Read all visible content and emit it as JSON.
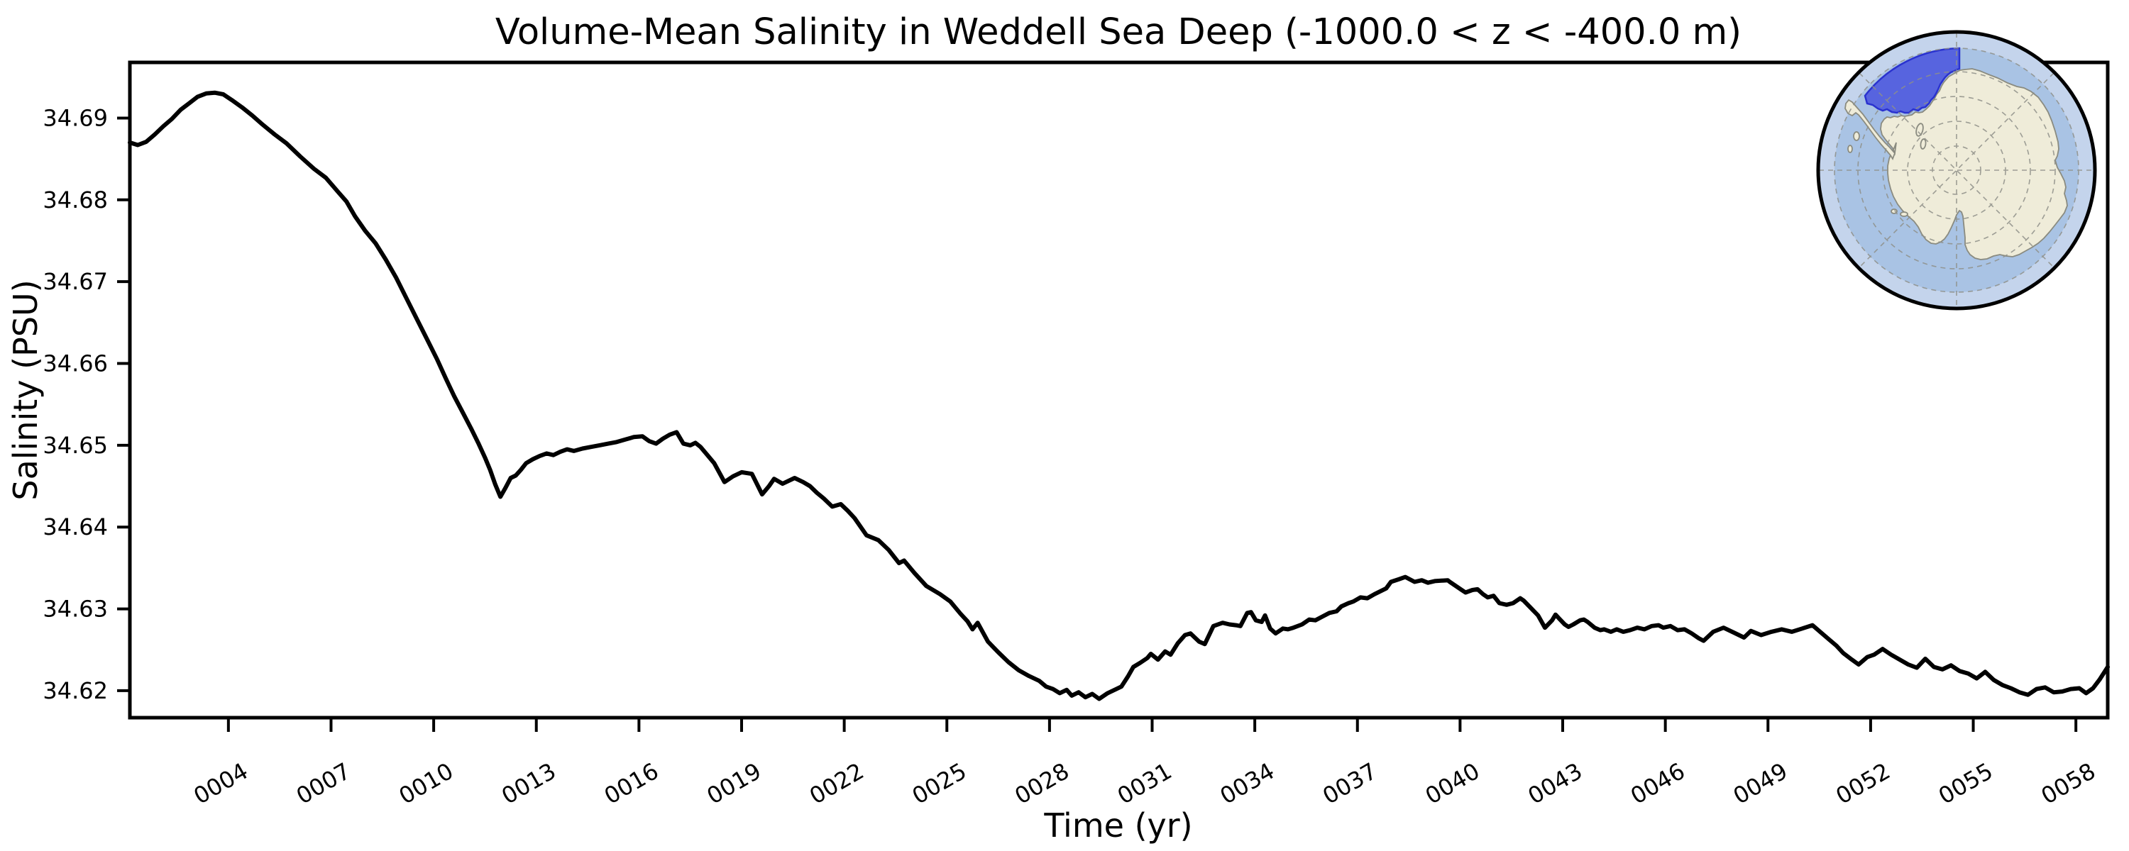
{
  "figure": {
    "title": "Volume-Mean Salinity in Weddell Sea Deep (-1000.0 < z < -400.0 m)",
    "xlabel": "Time (yr)",
    "ylabel": "Salinity (PSU)"
  },
  "chart_data": {
    "type": "line",
    "title": "Volume-Mean Salinity in Weddell Sea Deep (-1000.0 < z < -400.0 m)",
    "xlabel": "Time (yr)",
    "ylabel": "Salinity (PSU)",
    "x_tick_labels": [
      "0004",
      "0007",
      "0010",
      "0013",
      "0016",
      "0019",
      "0022",
      "0025",
      "0028",
      "0031",
      "0034",
      "0037",
      "0040",
      "0043",
      "0046",
      "0049",
      "0052",
      "0055",
      "0058"
    ],
    "x_tick_years": [
      4,
      7,
      10,
      13,
      16,
      19,
      22,
      25,
      28,
      31,
      34,
      37,
      40,
      43,
      46,
      49,
      52,
      55,
      58
    ],
    "y_ticks": [
      34.62,
      34.63,
      34.64,
      34.65,
      34.66,
      34.67,
      34.68,
      34.69
    ],
    "xlim": [
      1.12,
      58.93
    ],
    "ylim": [
      34.6167,
      34.6968
    ],
    "grid": false,
    "legend": null,
    "line_color": "#000000",
    "series": [
      {
        "name": "volume-mean salinity",
        "points": [
          [
            1.12,
            34.687
          ],
          [
            1.35,
            34.6867
          ],
          [
            1.6,
            34.6871
          ],
          [
            1.85,
            34.688
          ],
          [
            2.1,
            34.689
          ],
          [
            2.35,
            34.6899
          ],
          [
            2.6,
            34.691
          ],
          [
            2.85,
            34.6918
          ],
          [
            3.1,
            34.6926
          ],
          [
            3.35,
            34.693
          ],
          [
            3.6,
            34.6931
          ],
          [
            3.85,
            34.6929
          ],
          [
            4.1,
            34.6922
          ],
          [
            4.4,
            34.6913
          ],
          [
            4.7,
            34.6903
          ],
          [
            5.0,
            34.6892
          ],
          [
            5.35,
            34.688
          ],
          [
            5.7,
            34.6869
          ],
          [
            6.1,
            34.6853
          ],
          [
            6.5,
            34.6838
          ],
          [
            6.85,
            34.6827
          ],
          [
            7.2,
            34.681
          ],
          [
            7.45,
            34.6798
          ],
          [
            7.7,
            34.678
          ],
          [
            8.0,
            34.6762
          ],
          [
            8.3,
            34.6747
          ],
          [
            8.6,
            34.6727
          ],
          [
            8.9,
            34.6705
          ],
          [
            9.2,
            34.668
          ],
          [
            9.5,
            34.6655
          ],
          [
            9.8,
            34.663
          ],
          [
            10.1,
            34.6605
          ],
          [
            10.35,
            34.6582
          ],
          [
            10.6,
            34.656
          ],
          [
            10.85,
            34.654
          ],
          [
            11.1,
            34.652
          ],
          [
            11.3,
            34.6503
          ],
          [
            11.5,
            34.6485
          ],
          [
            11.65,
            34.647
          ],
          [
            11.8,
            34.6452
          ],
          [
            11.95,
            34.6437
          ],
          [
            12.1,
            34.6448
          ],
          [
            12.25,
            34.646
          ],
          [
            12.4,
            34.6463
          ],
          [
            12.55,
            34.647
          ],
          [
            12.7,
            34.6478
          ],
          [
            12.9,
            34.6483
          ],
          [
            13.1,
            34.6487
          ],
          [
            13.3,
            34.649
          ],
          [
            13.5,
            34.6488
          ],
          [
            13.7,
            34.6492
          ],
          [
            13.9,
            34.6495
          ],
          [
            14.1,
            34.6493
          ],
          [
            14.35,
            34.6496
          ],
          [
            14.6,
            34.6498
          ],
          [
            14.85,
            34.65
          ],
          [
            15.1,
            34.6502
          ],
          [
            15.35,
            34.6504
          ],
          [
            15.6,
            34.6507
          ],
          [
            15.85,
            34.651
          ],
          [
            16.1,
            34.6511
          ],
          [
            16.3,
            34.6505
          ],
          [
            16.5,
            34.6502
          ],
          [
            16.7,
            34.6508
          ],
          [
            16.9,
            34.6513
          ],
          [
            17.1,
            34.6516
          ],
          [
            17.3,
            34.6502
          ],
          [
            17.5,
            34.65
          ],
          [
            17.65,
            34.6503
          ],
          [
            17.8,
            34.6498
          ],
          [
            18.0,
            34.6488
          ],
          [
            18.2,
            34.6478
          ],
          [
            18.5,
            34.6455
          ],
          [
            18.75,
            34.6462
          ],
          [
            19.0,
            34.6467
          ],
          [
            19.3,
            34.6465
          ],
          [
            19.6,
            34.644
          ],
          [
            19.8,
            34.645
          ],
          [
            19.95,
            34.6459
          ],
          [
            20.2,
            34.6453
          ],
          [
            20.55,
            34.646
          ],
          [
            20.8,
            34.6455
          ],
          [
            21.0,
            34.645
          ],
          [
            21.2,
            34.6442
          ],
          [
            21.4,
            34.6435
          ],
          [
            21.65,
            34.6425
          ],
          [
            21.9,
            34.6428
          ],
          [
            22.1,
            34.642
          ],
          [
            22.3,
            34.6411
          ],
          [
            22.65,
            34.639
          ],
          [
            23.0,
            34.6384
          ],
          [
            23.3,
            34.6372
          ],
          [
            23.6,
            34.6356
          ],
          [
            23.75,
            34.6359
          ],
          [
            24.05,
            34.6344
          ],
          [
            24.4,
            34.6328
          ],
          [
            24.8,
            34.6318
          ],
          [
            25.1,
            34.6309
          ],
          [
            25.4,
            34.6294
          ],
          [
            25.6,
            34.6285
          ],
          [
            25.75,
            34.6275
          ],
          [
            25.9,
            34.6283
          ],
          [
            26.2,
            34.626
          ],
          [
            26.5,
            34.6247
          ],
          [
            26.8,
            34.6235
          ],
          [
            27.1,
            34.6225
          ],
          [
            27.4,
            34.6218
          ],
          [
            27.7,
            34.6212
          ],
          [
            27.9,
            34.6205
          ],
          [
            28.1,
            34.6202
          ],
          [
            28.3,
            34.6197
          ],
          [
            28.5,
            34.6201
          ],
          [
            28.65,
            34.6194
          ],
          [
            28.85,
            34.6198
          ],
          [
            29.05,
            34.6192
          ],
          [
            29.25,
            34.6196
          ],
          [
            29.45,
            34.619
          ],
          [
            29.7,
            34.6197
          ],
          [
            29.9,
            34.6201
          ],
          [
            30.1,
            34.6205
          ],
          [
            30.3,
            34.6218
          ],
          [
            30.45,
            34.6229
          ],
          [
            30.65,
            34.6234
          ],
          [
            30.86,
            34.624
          ],
          [
            30.96,
            34.6245
          ],
          [
            31.17,
            34.6238
          ],
          [
            31.38,
            34.6248
          ],
          [
            31.54,
            34.6244
          ],
          [
            31.75,
            34.6258
          ],
          [
            31.96,
            34.6268
          ],
          [
            32.12,
            34.627
          ],
          [
            32.37,
            34.626
          ],
          [
            32.54,
            34.6257
          ],
          [
            32.79,
            34.6279
          ],
          [
            33.06,
            34.6283
          ],
          [
            33.26,
            34.6281
          ],
          [
            33.45,
            34.628
          ],
          [
            33.58,
            34.6279
          ],
          [
            33.78,
            34.6295
          ],
          [
            33.89,
            34.6296
          ],
          [
            34.03,
            34.6286
          ],
          [
            34.2,
            34.6284
          ],
          [
            34.3,
            34.6292
          ],
          [
            34.45,
            34.6276
          ],
          [
            34.61,
            34.627
          ],
          [
            34.82,
            34.6276
          ],
          [
            34.97,
            34.6275
          ],
          [
            35.13,
            34.6277
          ],
          [
            35.38,
            34.6281
          ],
          [
            35.59,
            34.6287
          ],
          [
            35.77,
            34.6286
          ],
          [
            35.95,
            34.629
          ],
          [
            36.18,
            34.6295
          ],
          [
            36.39,
            34.6297
          ],
          [
            36.53,
            34.6303
          ],
          [
            36.74,
            34.6307
          ],
          [
            36.88,
            34.6309
          ],
          [
            37.09,
            34.6314
          ],
          [
            37.29,
            34.6313
          ],
          [
            37.5,
            34.6318
          ],
          [
            37.84,
            34.6325
          ],
          [
            37.98,
            34.6333
          ],
          [
            38.2,
            34.6336
          ],
          [
            38.4,
            34.6339
          ],
          [
            38.67,
            34.6333
          ],
          [
            38.88,
            34.6335
          ],
          [
            39.06,
            34.6332
          ],
          [
            39.26,
            34.6334
          ],
          [
            39.64,
            34.6335
          ],
          [
            39.7,
            34.6333
          ],
          [
            40.05,
            34.6323
          ],
          [
            40.16,
            34.632
          ],
          [
            40.36,
            34.6323
          ],
          [
            40.51,
            34.6324
          ],
          [
            40.67,
            34.6318
          ],
          [
            40.81,
            34.6314
          ],
          [
            40.98,
            34.6316
          ],
          [
            41.15,
            34.6307
          ],
          [
            41.36,
            34.6305
          ],
          [
            41.55,
            34.6307
          ],
          [
            41.76,
            34.6313
          ],
          [
            41.86,
            34.631
          ],
          [
            42.07,
            34.6301
          ],
          [
            42.28,
            34.6292
          ],
          [
            42.48,
            34.6277
          ],
          [
            42.69,
            34.6286
          ],
          [
            42.79,
            34.6293
          ],
          [
            42.9,
            34.6288
          ],
          [
            43.06,
            34.6281
          ],
          [
            43.17,
            34.6278
          ],
          [
            43.31,
            34.6281
          ],
          [
            43.51,
            34.6286
          ],
          [
            43.62,
            34.6287
          ],
          [
            43.73,
            34.6284
          ],
          [
            43.93,
            34.6277
          ],
          [
            44.1,
            34.6274
          ],
          [
            44.21,
            34.6275
          ],
          [
            44.41,
            34.6272
          ],
          [
            44.58,
            34.6275
          ],
          [
            44.77,
            34.6272
          ],
          [
            44.97,
            34.6274
          ],
          [
            45.18,
            34.6277
          ],
          [
            45.39,
            34.6275
          ],
          [
            45.6,
            34.6279
          ],
          [
            45.8,
            34.628
          ],
          [
            45.94,
            34.6277
          ],
          [
            46.15,
            34.6279
          ],
          [
            46.36,
            34.6274
          ],
          [
            46.56,
            34.6275
          ],
          [
            46.77,
            34.627
          ],
          [
            46.98,
            34.6264
          ],
          [
            47.12,
            34.6261
          ],
          [
            47.4,
            34.6272
          ],
          [
            47.7,
            34.6277
          ],
          [
            48.0,
            34.6271
          ],
          [
            48.3,
            34.6265
          ],
          [
            48.5,
            34.6273
          ],
          [
            48.8,
            34.6268
          ],
          [
            49.1,
            34.6272
          ],
          [
            49.4,
            34.6275
          ],
          [
            49.7,
            34.6272
          ],
          [
            50.0,
            34.6276
          ],
          [
            50.3,
            34.628
          ],
          [
            50.55,
            34.6271
          ],
          [
            50.8,
            34.6262
          ],
          [
            51.0,
            34.6255
          ],
          [
            51.2,
            34.6246
          ],
          [
            51.45,
            34.6238
          ],
          [
            51.65,
            34.6232
          ],
          [
            51.9,
            34.6241
          ],
          [
            52.1,
            34.6244
          ],
          [
            52.35,
            34.6251
          ],
          [
            52.6,
            34.6244
          ],
          [
            52.85,
            34.6238
          ],
          [
            53.1,
            34.6232
          ],
          [
            53.35,
            34.6228
          ],
          [
            53.6,
            34.6239
          ],
          [
            53.85,
            34.6229
          ],
          [
            54.1,
            34.6226
          ],
          [
            54.35,
            34.6231
          ],
          [
            54.6,
            34.6224
          ],
          [
            54.85,
            34.6221
          ],
          [
            55.1,
            34.6215
          ],
          [
            55.35,
            34.6223
          ],
          [
            55.6,
            34.6213
          ],
          [
            55.85,
            34.6207
          ],
          [
            56.1,
            34.6203
          ],
          [
            56.35,
            34.6198
          ],
          [
            56.6,
            34.6195
          ],
          [
            56.85,
            34.6202
          ],
          [
            57.1,
            34.6204
          ],
          [
            57.35,
            34.6198
          ],
          [
            57.6,
            34.6199
          ],
          [
            57.85,
            34.6202
          ],
          [
            58.1,
            34.6203
          ],
          [
            58.3,
            34.6197
          ],
          [
            58.5,
            34.6203
          ],
          [
            58.7,
            34.6214
          ],
          [
            58.93,
            34.6229
          ]
        ]
      }
    ]
  },
  "inset_map": {
    "name": "south-polar map of Antarctica",
    "highlighted_region": "Weddell Sea Deep",
    "colors": {
      "ocean": "#a9c3e4",
      "ocean_outer": "#c4d4ec",
      "land": "#efecd9",
      "region_fill": "#4b57de",
      "region_border": "#2a32cf",
      "border": "#000000"
    }
  }
}
